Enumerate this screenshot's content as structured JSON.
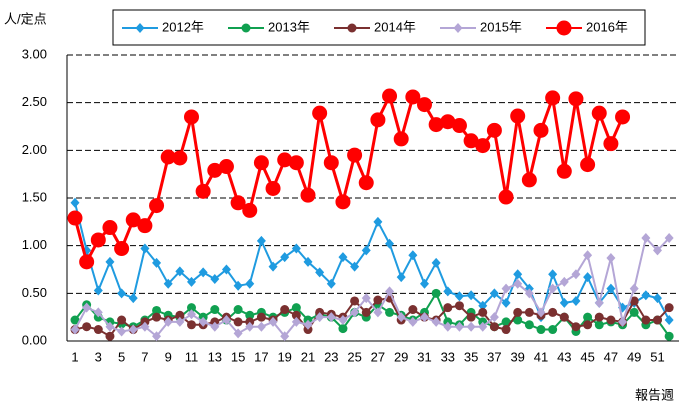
{
  "chart_data": {
    "type": "line",
    "y_label": "人/定点",
    "x_label": "報告週",
    "categories": [
      "1",
      null,
      "3",
      null,
      "5",
      null,
      "7",
      null,
      "9",
      null,
      "11",
      null,
      "13",
      null,
      "15",
      null,
      "17",
      null,
      "19",
      null,
      "21",
      null,
      "23",
      null,
      "25",
      null,
      "27",
      null,
      "29",
      null,
      "31",
      null,
      "33",
      null,
      "35",
      null,
      "37",
      null,
      "39",
      null,
      "41",
      null,
      "43",
      null,
      "45",
      null,
      "47",
      null,
      "49",
      null,
      "51",
      null
    ],
    "ylim": [
      0,
      3
    ],
    "yticks": [
      {
        "value": 0,
        "label": "0.00"
      },
      {
        "value": 0.5,
        "label": "0.50"
      },
      {
        "value": 1,
        "label": "1.00"
      },
      {
        "value": 1.5,
        "label": "1.50"
      },
      {
        "value": 2,
        "label": "2.00"
      },
      {
        "value": 2.5,
        "label": "2.50"
      },
      {
        "value": 3,
        "label": "3.00"
      }
    ],
    "grid": true,
    "legend": "top",
    "series": [
      {
        "name": "2012年",
        "color": "#1f9be0",
        "marker": "diamond",
        "values": [
          1.45,
          0.95,
          0.53,
          0.83,
          0.5,
          0.45,
          0.97,
          0.82,
          0.6,
          0.73,
          0.62,
          0.72,
          0.65,
          0.75,
          0.58,
          0.6,
          1.05,
          0.78,
          0.88,
          0.97,
          0.83,
          0.72,
          0.6,
          0.88,
          0.78,
          0.95,
          1.25,
          1.02,
          0.67,
          0.9,
          0.6,
          0.82,
          0.52,
          0.47,
          0.48,
          0.37,
          0.5,
          0.4,
          0.7,
          0.55,
          0.25,
          0.7,
          0.4,
          0.42,
          0.67,
          0.4,
          0.55,
          0.35,
          0.4,
          0.48,
          0.45,
          0.22
        ]
      },
      {
        "name": "2013年",
        "color": "#10a050",
        "marker": "circle",
        "values": [
          0.22,
          0.38,
          0.25,
          0.2,
          0.18,
          0.15,
          0.22,
          0.32,
          0.27,
          0.25,
          0.35,
          0.25,
          0.33,
          0.22,
          0.33,
          0.27,
          0.3,
          0.25,
          0.3,
          0.35,
          0.22,
          0.28,
          0.25,
          0.13,
          0.3,
          0.25,
          0.38,
          0.3,
          0.27,
          0.22,
          0.3,
          0.5,
          0.2,
          0.17,
          0.3,
          0.2,
          0.15,
          0.2,
          0.22,
          0.17,
          0.12,
          0.12,
          0.25,
          0.1,
          0.25,
          0.17,
          0.2,
          0.17,
          0.3,
          0.17,
          0.22,
          0.05
        ]
      },
      {
        "name": "2014年",
        "color": "#7a3030",
        "marker": "circle",
        "values": [
          0.12,
          0.15,
          0.12,
          0.05,
          0.22,
          0.12,
          0.2,
          0.25,
          0.22,
          0.27,
          0.17,
          0.17,
          0.2,
          0.25,
          0.2,
          0.2,
          0.25,
          0.22,
          0.33,
          0.27,
          0.12,
          0.3,
          0.28,
          0.25,
          0.42,
          0.3,
          0.43,
          0.45,
          0.22,
          0.33,
          0.25,
          0.22,
          0.35,
          0.37,
          0.25,
          0.3,
          0.15,
          0.12,
          0.3,
          0.3,
          0.27,
          0.3,
          0.25,
          0.15,
          0.17,
          0.25,
          0.22,
          0.2,
          0.42,
          0.22,
          0.22,
          0.35
        ]
      },
      {
        "name": "2015年",
        "color": "#b4a6d6",
        "marker": "diamond",
        "values": [
          0.12,
          0.35,
          0.3,
          0.15,
          0.1,
          0.12,
          0.15,
          0.05,
          0.2,
          0.2,
          0.28,
          0.2,
          0.15,
          0.22,
          0.08,
          0.15,
          0.15,
          0.2,
          0.05,
          0.2,
          0.17,
          0.25,
          0.25,
          0.22,
          0.3,
          0.45,
          0.3,
          0.52,
          0.25,
          0.2,
          0.25,
          0.2,
          0.15,
          0.15,
          0.15,
          0.15,
          0.25,
          0.55,
          0.6,
          0.5,
          0.3,
          0.55,
          0.62,
          0.7,
          0.9,
          0.4,
          0.87,
          0.2,
          0.55,
          1.08,
          0.95,
          1.08
        ]
      },
      {
        "name": "2016年",
        "color": "#ff0000",
        "marker": "bigcircle",
        "values": [
          1.29,
          0.83,
          1.06,
          1.19,
          0.97,
          1.27,
          1.21,
          1.42,
          1.93,
          1.92,
          2.35,
          1.57,
          1.79,
          1.83,
          1.45,
          1.37,
          1.87,
          1.6,
          1.9,
          1.87,
          1.53,
          2.39,
          1.87,
          1.46,
          1.95,
          1.66,
          2.32,
          2.57,
          2.12,
          2.56,
          2.48,
          2.27,
          2.3,
          2.26,
          2.1,
          2.05,
          2.21,
          1.51,
          2.36,
          1.69,
          2.21,
          2.55,
          1.78,
          2.54,
          1.85,
          2.39,
          2.07,
          2.35,
          null,
          null,
          null,
          null
        ]
      }
    ]
  }
}
